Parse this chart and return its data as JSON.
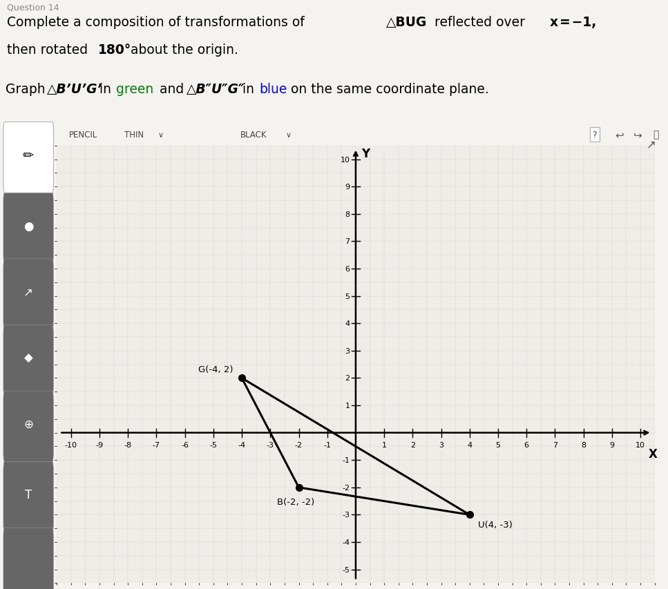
{
  "original": {
    "B": [
      -2,
      -2
    ],
    "U": [
      4,
      -3
    ],
    "G": [
      -4,
      2
    ],
    "color": "#000000"
  },
  "labels": {
    "G": "G(-4, 2)",
    "B": "B(-2, -2)",
    "U": "U(4, -3)"
  },
  "xlim": [
    -10.5,
    10.5
  ],
  "ylim": [
    -5.5,
    10.5
  ],
  "grid_major_color": "#b0b0b0",
  "grid_minor_color": "#d0d0d0",
  "plot_bg": "#f0ede8",
  "sidebar_color": "#555555",
  "toolbar_bg": "#d8d5d0",
  "outer_bg": "#c8c5c0",
  "fig_bg": "#f5f3f0"
}
